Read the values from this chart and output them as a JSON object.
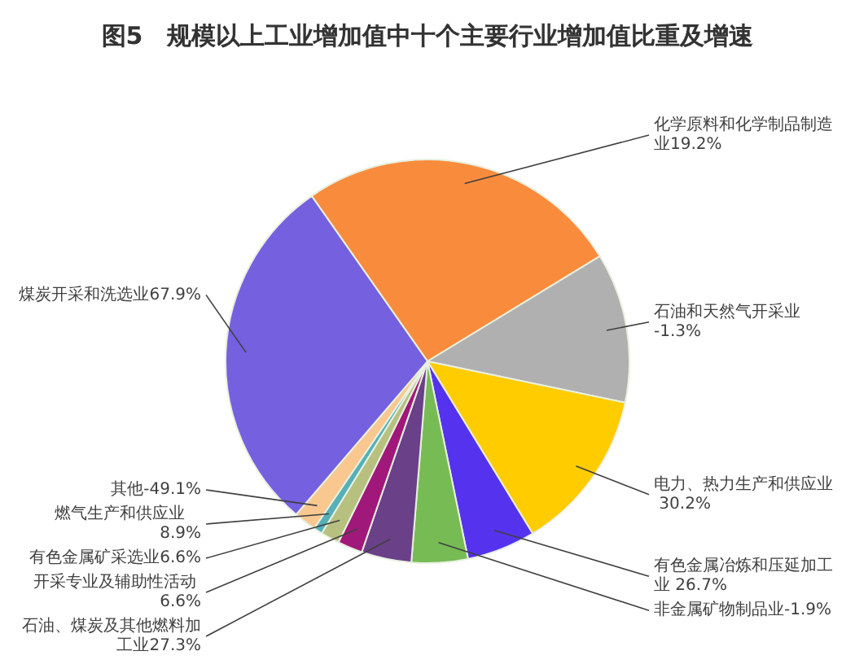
{
  "chart_data": {
    "type": "pie",
    "title": "图5　规模以上工业增加值中十个主要行业增加值比重及增速",
    "categories": [
      "化学原料和化学制品制造业19.2%",
      "石油和天然气开采业-1.3%",
      "电力、热力生产和供应业 30.2%",
      "有色金属冶炼和压延加工业 26.7%",
      "非金属矿物制品业-1.9%",
      "石油、煤炭及其他燃料加工业27.3%",
      "开采专业及辅助性活动 6.6%",
      "有色金属矿采选业6.6%",
      "燃气生产和供应业　8.9%",
      "其他-49.1%",
      "煤炭开采和洗选业67.9%"
    ],
    "values": [
      26,
      12,
      13,
      5.5,
      4.5,
      4,
      2,
      1.5,
      0.7,
      1.8,
      29
    ],
    "colors": [
      "#f98c3c",
      "#b0b0b0",
      "#ffcc00",
      "#5533ee",
      "#77bb55",
      "#6a4088",
      "#a0197a",
      "#b8c080",
      "#55b0b8",
      "#f8c890",
      "#7560e0"
    ],
    "legend": false
  }
}
